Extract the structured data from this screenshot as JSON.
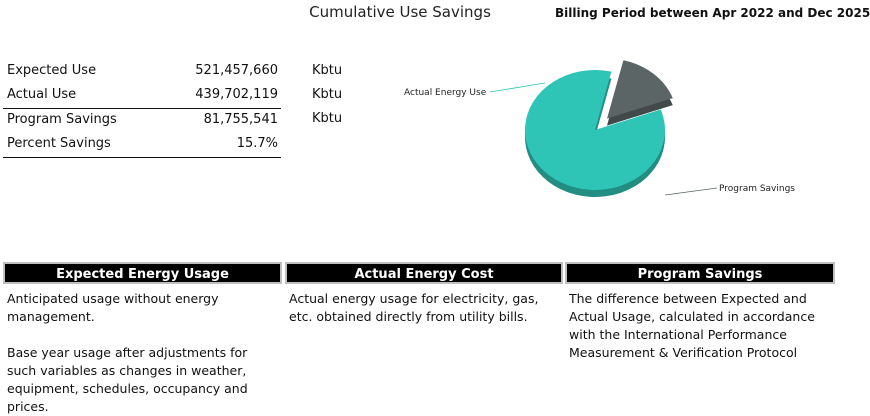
{
  "header": {
    "title": "Cumulative Use Savings",
    "billing_period": "Billing Period between Apr 2022 and Dec 2025"
  },
  "summary": {
    "rows": [
      {
        "label": "Expected Use",
        "value": "521,457,660",
        "unit": "Kbtu"
      },
      {
        "label": "Actual Use",
        "value": "439,702,119",
        "unit": "Kbtu"
      },
      {
        "label": "Program Savings",
        "value": "81,755,541",
        "unit": "Kbtu"
      },
      {
        "label": "Percent Savings",
        "value": "15.7%",
        "unit": ""
      }
    ]
  },
  "chart_data": {
    "type": "pie",
    "title": "",
    "slices": [
      {
        "label": "Actual Energy Use",
        "value": 439702119,
        "color": "#2ec4b6",
        "exploded": false
      },
      {
        "label": "Program Savings",
        "value": 81755541,
        "color": "#5c6566",
        "exploded": true
      }
    ]
  },
  "panels": [
    {
      "header": "Expected Energy Usage",
      "paragraphs": [
        "Anticipated usage without energy management.",
        "Base year usage after adjustments for such variables as changes in weather, equipment, schedules, occupancy and prices."
      ]
    },
    {
      "header": "Actual Energy Cost",
      "paragraphs": [
        "Actual energy usage for electricity, gas, etc. obtained directly from utility bills."
      ]
    },
    {
      "header": "Program Savings",
      "paragraphs": [
        "The difference between Expected and Actual Usage, calculated in accordance with the International Performance Measurement & Verification Protocol"
      ]
    }
  ]
}
